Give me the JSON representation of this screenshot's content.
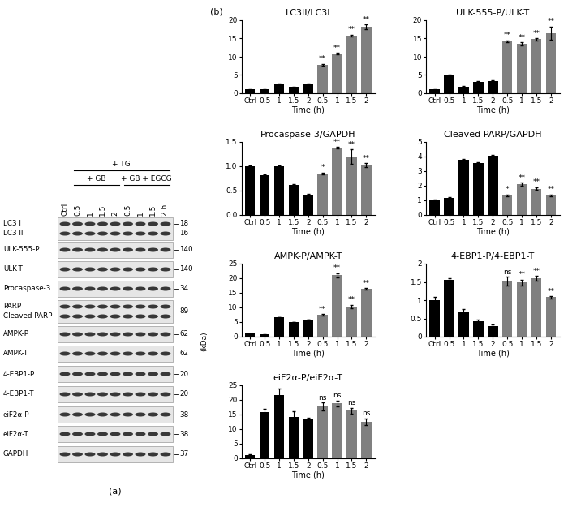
{
  "panel_labels": [
    "(a)",
    "(b)"
  ],
  "blot": {
    "header": "+ TG",
    "groups": [
      "+ GB",
      "+ GB + EGCG"
    ],
    "lanes": [
      "Ctrl",
      "0.5",
      "1",
      "1.5",
      "2",
      "0.5",
      "1",
      "1.5",
      "2 h"
    ],
    "unit": "(kDa)",
    "rows": [
      {
        "labels": [
          "LC3 I",
          "LC3 II"
        ],
        "kda": [
          18,
          16
        ]
      },
      {
        "labels": [
          "ULK-555-P"
        ],
        "kda": [
          140
        ]
      },
      {
        "labels": [
          "ULK-T"
        ],
        "kda": [
          140
        ]
      },
      {
        "labels": [
          "Procaspase-3"
        ],
        "kda": [
          34
        ]
      },
      {
        "labels": [
          "PARP",
          "Cleaved PARP"
        ],
        "kda": [
          89
        ]
      },
      {
        "labels": [
          "AMPK-P"
        ],
        "kda": [
          62
        ]
      },
      {
        "labels": [
          "AMPK-T"
        ],
        "kda": [
          62
        ]
      },
      {
        "labels": [
          "4-EBP1-P"
        ],
        "kda": [
          20
        ]
      },
      {
        "labels": [
          "4-EBP1-T"
        ],
        "kda": [
          20
        ]
      },
      {
        "labels": [
          "eiF2α-P"
        ],
        "kda": [
          38
        ]
      },
      {
        "labels": [
          "eiF2α-T"
        ],
        "kda": [
          38
        ]
      },
      {
        "labels": [
          "GAPDH"
        ],
        "kda": [
          37
        ]
      }
    ]
  },
  "chart_data": [
    {
      "type": "bar",
      "title": "LC3II/LC3I",
      "xlabel": "Time (h)",
      "categories": [
        "Ctrl",
        "0.5",
        "1",
        "1.5",
        "2",
        "0.5",
        "1",
        "1.5",
        "2"
      ],
      "values": [
        1.0,
        1.0,
        2.5,
        1.7,
        2.6,
        7.8,
        10.8,
        15.8,
        18.2
      ],
      "errors": [
        0.1,
        0.1,
        0.1,
        0.1,
        0.1,
        0.3,
        0.2,
        0.3,
        0.7
      ],
      "annotations": [
        null,
        null,
        null,
        null,
        null,
        "**",
        "**",
        "**",
        "**"
      ],
      "colors": [
        "#000000",
        "#000000",
        "#000000",
        "#000000",
        "#000000",
        "#808080",
        "#808080",
        "#808080",
        "#808080"
      ],
      "ylim": [
        0,
        20
      ],
      "yticks": [
        0,
        5,
        10,
        15,
        20
      ]
    },
    {
      "type": "bar",
      "title": "ULK-555-P/ULK-T",
      "xlabel": "Time (h)",
      "categories": [
        "Ctrl",
        "0.5",
        "1",
        "1.5",
        "2",
        "0.5",
        "1",
        "1.5",
        "2"
      ],
      "values": [
        1.0,
        5.0,
        1.8,
        3.2,
        3.4,
        14.2,
        13.5,
        14.8,
        16.5
      ],
      "errors": [
        0.1,
        0.1,
        0.1,
        0.1,
        0.1,
        0.3,
        0.5,
        0.3,
        1.8
      ],
      "annotations": [
        null,
        null,
        null,
        null,
        null,
        "**",
        "**",
        "**",
        "**"
      ],
      "colors": [
        "#000000",
        "#000000",
        "#000000",
        "#000000",
        "#000000",
        "#808080",
        "#808080",
        "#808080",
        "#808080"
      ],
      "ylim": [
        0,
        20
      ],
      "yticks": [
        0,
        5,
        10,
        15,
        20
      ]
    },
    {
      "type": "bar",
      "title": "Procaspase-3/GAPDH",
      "xlabel": "Time (h)",
      "categories": [
        "Ctrl",
        "0.5",
        "1",
        "1.5",
        "2",
        "0.5",
        "1",
        "1.5",
        "2"
      ],
      "values": [
        1.0,
        0.82,
        1.0,
        0.62,
        0.42,
        0.85,
        1.38,
        1.2,
        1.02
      ],
      "errors": [
        0.02,
        0.02,
        0.01,
        0.01,
        0.01,
        0.02,
        0.02,
        0.15,
        0.04
      ],
      "annotations": [
        null,
        null,
        null,
        null,
        null,
        "*",
        "**",
        "**",
        "**"
      ],
      "colors": [
        "#000000",
        "#000000",
        "#000000",
        "#000000",
        "#000000",
        "#808080",
        "#808080",
        "#808080",
        "#808080"
      ],
      "ylim": [
        0,
        1.5
      ],
      "yticks": [
        {
          "value": 0,
          "label": "0.0"
        },
        0.5,
        {
          "value": 1,
          "label": "1.0"
        },
        1.5
      ]
    },
    {
      "type": "bar",
      "title": "Cleaved PARP/GAPDH",
      "xlabel": "Time (h)",
      "categories": [
        "Ctrl",
        "0.5",
        "1",
        "1.5",
        "2",
        "0.5",
        "1",
        "1.5",
        "2"
      ],
      "values": [
        1.0,
        1.15,
        3.8,
        3.55,
        4.05,
        1.35,
        2.1,
        1.8,
        1.35
      ],
      "errors": [
        0.05,
        0.05,
        0.05,
        0.05,
        0.05,
        0.05,
        0.1,
        0.1,
        0.05
      ],
      "annotations": [
        null,
        null,
        null,
        null,
        null,
        "*",
        "**",
        "**",
        "**"
      ],
      "colors": [
        "#000000",
        "#000000",
        "#000000",
        "#000000",
        "#000000",
        "#808080",
        "#808080",
        "#808080",
        "#808080"
      ],
      "ylim": [
        0,
        5
      ],
      "yticks": [
        0,
        1,
        2,
        3,
        4,
        5
      ]
    },
    {
      "type": "bar",
      "title": "AMPK-P/AMPK-T",
      "xlabel": "Time (h)",
      "categories": [
        "Ctrl",
        "0.5",
        "1",
        "1.5",
        "2",
        "0.5",
        "1",
        "1.5",
        "2"
      ],
      "values": [
        1.0,
        0.7,
        6.7,
        5.0,
        5.8,
        7.4,
        21.0,
        10.3,
        16.3
      ],
      "errors": [
        0.1,
        0.1,
        0.1,
        0.1,
        0.1,
        0.3,
        0.8,
        0.6,
        0.3
      ],
      "annotations": [
        null,
        null,
        null,
        null,
        null,
        "**",
        "**",
        "**",
        "**"
      ],
      "colors": [
        "#000000",
        "#000000",
        "#000000",
        "#000000",
        "#000000",
        "#808080",
        "#808080",
        "#808080",
        "#808080"
      ],
      "ylim": [
        0,
        25
      ],
      "yticks": [
        0,
        5,
        10,
        15,
        20,
        25
      ]
    },
    {
      "type": "bar",
      "title": "4-EBP1-P/4-EBP1-T",
      "xlabel": "Time (h)",
      "categories": [
        "Ctrl",
        "0.5",
        "1",
        "1.5",
        "2",
        "0.5",
        "1",
        "1.5",
        "2"
      ],
      "values": [
        1.0,
        1.55,
        0.7,
        0.42,
        0.3,
        1.52,
        1.48,
        1.6,
        1.08
      ],
      "errors": [
        0.08,
        0.05,
        0.06,
        0.05,
        0.04,
        0.12,
        0.08,
        0.07,
        0.03
      ],
      "annotations": [
        null,
        null,
        null,
        null,
        null,
        "ns",
        "**",
        "**",
        "**"
      ],
      "colors": [
        "#000000",
        "#000000",
        "#000000",
        "#000000",
        "#000000",
        "#808080",
        "#808080",
        "#808080",
        "#808080"
      ],
      "ylim": [
        0,
        2
      ],
      "yticks": [
        0,
        0.5,
        1,
        1.5,
        2
      ]
    },
    {
      "type": "bar",
      "title": "eiF2α-P/eiF2α-T",
      "xlabel": "Time (h)",
      "categories": [
        "Ctrl",
        "0.5",
        "1",
        "1.5",
        "2",
        "0.5",
        "1",
        "1.5",
        "2"
      ],
      "values": [
        1.0,
        15.8,
        21.8,
        14.2,
        13.2,
        17.8,
        18.8,
        16.3,
        12.5
      ],
      "errors": [
        0.3,
        1.2,
        2.0,
        2.0,
        0.8,
        1.3,
        1.0,
        1.0,
        1.2
      ],
      "annotations": [
        null,
        null,
        null,
        null,
        null,
        "ns",
        "ns",
        "ns",
        "ns"
      ],
      "colors": [
        "#000000",
        "#000000",
        "#000000",
        "#000000",
        "#000000",
        "#808080",
        "#808080",
        "#808080",
        "#808080"
      ],
      "ylim": [
        0,
        25
      ],
      "yticks": [
        0,
        5,
        10,
        15,
        20,
        25
      ]
    }
  ]
}
